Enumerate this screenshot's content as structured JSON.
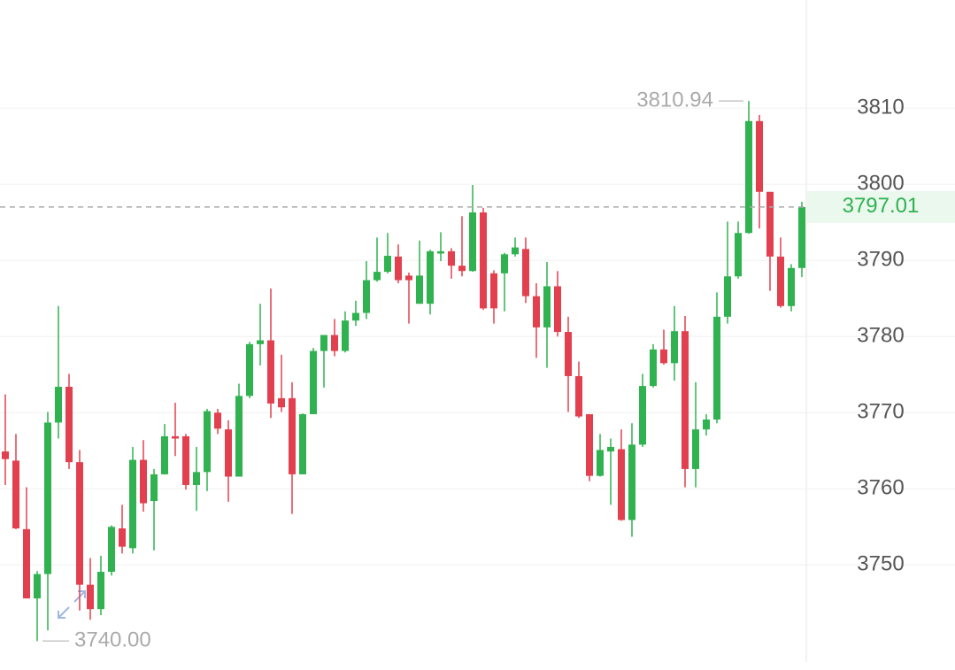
{
  "chart_data": {
    "type": "candlestick",
    "ylim": [
      3736.2,
      3824.2
    ],
    "yticks": [
      3750,
      3760,
      3770,
      3780,
      3790,
      3800,
      3810
    ],
    "grid": true,
    "up_color": "#2fb24f",
    "down_color": "#e2404e",
    "open": [
      3764.9,
      3763.7,
      3754.7,
      3745.6,
      3748.8,
      3768.7,
      3773.4,
      3763.5,
      3747.4,
      3744.2,
      3749.1,
      3754.8,
      3752.2,
      3763.8,
      3758.4,
      3761.9,
      3766.9,
      3766.9,
      3760.5,
      3762.2,
      3770.0,
      3767.8,
      3761.6,
      3772.2,
      3779.0,
      3779.5,
      3771.9,
      3771.9,
      3761.9,
      3769.8,
      3778.1,
      3780.2,
      3778.1,
      3782.1,
      3783.1,
      3787.4,
      3788.5,
      3790.5,
      3788.0,
      3784.3,
      3784.3,
      3790.9,
      3791.2,
      3789.3,
      3788.6,
      3796.3,
      3788.3,
      3788.3,
      3790.8,
      3791.5,
      3785.3,
      3781.2,
      3786.6,
      3780.6,
      3774.8,
      3769.8,
      3761.7,
      3764.9,
      3765.2,
      3755.9,
      3765.8,
      3773.5,
      3778.3,
      3776.5,
      3780.7,
      3762.6,
      3767.8,
      3769.1,
      3782.6,
      3787.9,
      3793.6,
      3808.3,
      3799.0,
      3790.5,
      3784.0,
      3789.0
    ],
    "high": [
      3772.4,
      3767.2,
      3760.2,
      3749.2,
      3770.1,
      3784.0,
      3775.1,
      3765.1,
      3750.9,
      3751.2,
      3755.2,
      3757.9,
      3765.5,
      3766.4,
      3762.6,
      3768.5,
      3771.3,
      3767.2,
      3765.5,
      3770.5,
      3770.5,
      3769.0,
      3773.8,
      3779.3,
      3784.3,
      3786.3,
      3777.6,
      3774.0,
      3769.9,
      3778.5,
      3780.2,
      3782.3,
      3783.3,
      3784.7,
      3789.9,
      3793.0,
      3793.6,
      3792.1,
      3788.4,
      3792.6,
      3791.4,
      3793.7,
      3791.6,
      3795.8,
      3799.9,
      3796.9,
      3788.7,
      3791.0,
      3793.0,
      3793.0,
      3787.0,
      3789.8,
      3788.6,
      3782.6,
      3776.7,
      3769.8,
      3767.2,
      3766.6,
      3767.8,
      3768.6,
      3775.1,
      3779.0,
      3780.9,
      3784.0,
      3782.7,
      3774.0,
      3769.8,
      3785.8,
      3795.1,
      3795.1,
      3810.94,
      3809.1,
      3799.0,
      3793.0,
      3789.5,
      3797.7
    ],
    "low": [
      3760.5,
      3754.7,
      3745.6,
      3740.0,
      3741.4,
      3766.6,
      3762.6,
      3744.0,
      3742.8,
      3743.4,
      3748.6,
      3751.5,
      3751.5,
      3757.0,
      3751.9,
      3761.9,
      3764.3,
      3759.9,
      3757.1,
      3759.7,
      3767.2,
      3758.3,
      3761.6,
      3771.9,
      3776.2,
      3769.3,
      3770.1,
      3756.7,
      3761.9,
      3769.8,
      3773.3,
      3777.4,
      3777.9,
      3781.4,
      3782.3,
      3787.2,
      3788.3,
      3787.0,
      3781.7,
      3784.3,
      3782.9,
      3789.9,
      3787.6,
      3787.9,
      3788.5,
      3783.5,
      3781.7,
      3783.3,
      3790.5,
      3784.4,
      3777.2,
      3775.9,
      3780.0,
      3770.1,
      3769.3,
      3761.0,
      3761.6,
      3757.9,
      3755.8,
      3753.7,
      3765.5,
      3773.3,
      3776.3,
      3774.2,
      3760.2,
      3760.2,
      3767.0,
      3768.6,
      3781.7,
      3787.6,
      3793.5,
      3794.2,
      3786.0,
      3783.8,
      3783.3,
      3787.8
    ],
    "close": [
      3763.9,
      3754.8,
      3745.6,
      3748.8,
      3768.7,
      3773.4,
      3763.5,
      3747.4,
      3744.2,
      3749.1,
      3755.0,
      3752.4,
      3763.8,
      3758.1,
      3761.9,
      3766.9,
      3766.6,
      3760.5,
      3762.2,
      3770.2,
      3767.9,
      3761.6,
      3772.2,
      3779.0,
      3779.5,
      3771.2,
      3770.7,
      3761.9,
      3769.8,
      3778.1,
      3780.2,
      3778.1,
      3782.1,
      3783.1,
      3787.4,
      3788.5,
      3790.6,
      3787.4,
      3787.4,
      3788.0,
      3791.2,
      3791.2,
      3789.3,
      3788.6,
      3796.3,
      3783.7,
      3783.7,
      3790.8,
      3791.7,
      3785.3,
      3781.2,
      3786.6,
      3780.6,
      3774.8,
      3769.5,
      3761.7,
      3765.1,
      3765.5,
      3755.9,
      3765.8,
      3773.5,
      3778.3,
      3776.5,
      3780.7,
      3762.6,
      3767.8,
      3769.1,
      3782.6,
      3787.9,
      3793.6,
      3808.3,
      3799.0,
      3790.5,
      3784.0,
      3789.0,
      3797.01
    ],
    "max_label": {
      "value": 3810.94,
      "label": "3810.94"
    },
    "min_label": {
      "value": 3740.0,
      "label": "3740.00"
    },
    "last_price": {
      "value": 3797.01,
      "label": "3797.01"
    }
  }
}
